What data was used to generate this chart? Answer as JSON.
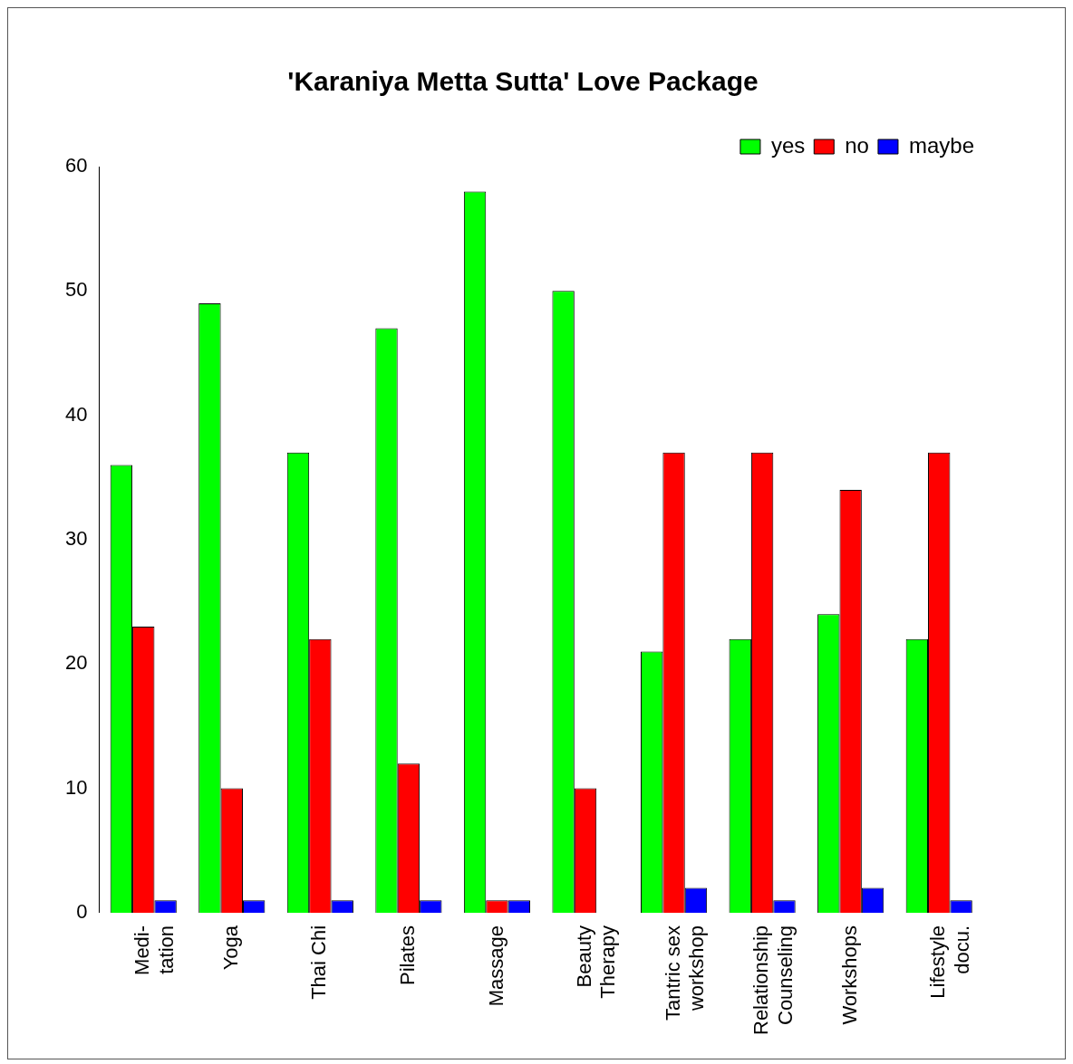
{
  "chart_data": {
    "type": "bar",
    "title": "'Karaniya Metta Sutta' Love Package",
    "categories": [
      "Medi-\ntation",
      "Yoga",
      "Thai Chi",
      "Pilates",
      "Massage",
      "Beauty\nTherapy",
      "Tantric sex\nworkshop",
      "Relationship\nCounseling",
      "Workshops",
      "Lifestyle\ndocu."
    ],
    "series": [
      {
        "name": "yes",
        "color": "#00ff00",
        "values": [
          36,
          49,
          37,
          47,
          58,
          50,
          21,
          22,
          24,
          22
        ]
      },
      {
        "name": "no",
        "color": "#ff0000",
        "values": [
          23,
          10,
          22,
          12,
          1,
          10,
          37,
          37,
          34,
          37
        ]
      },
      {
        "name": "maybe",
        "color": "#0000ff",
        "values": [
          1,
          1,
          1,
          1,
          1,
          0,
          2,
          1,
          2,
          1
        ]
      }
    ],
    "ylim": [
      0,
      60
    ],
    "yticks": [
      0,
      10,
      20,
      30,
      40,
      50,
      60
    ],
    "grid": false,
    "legend": "top right"
  }
}
